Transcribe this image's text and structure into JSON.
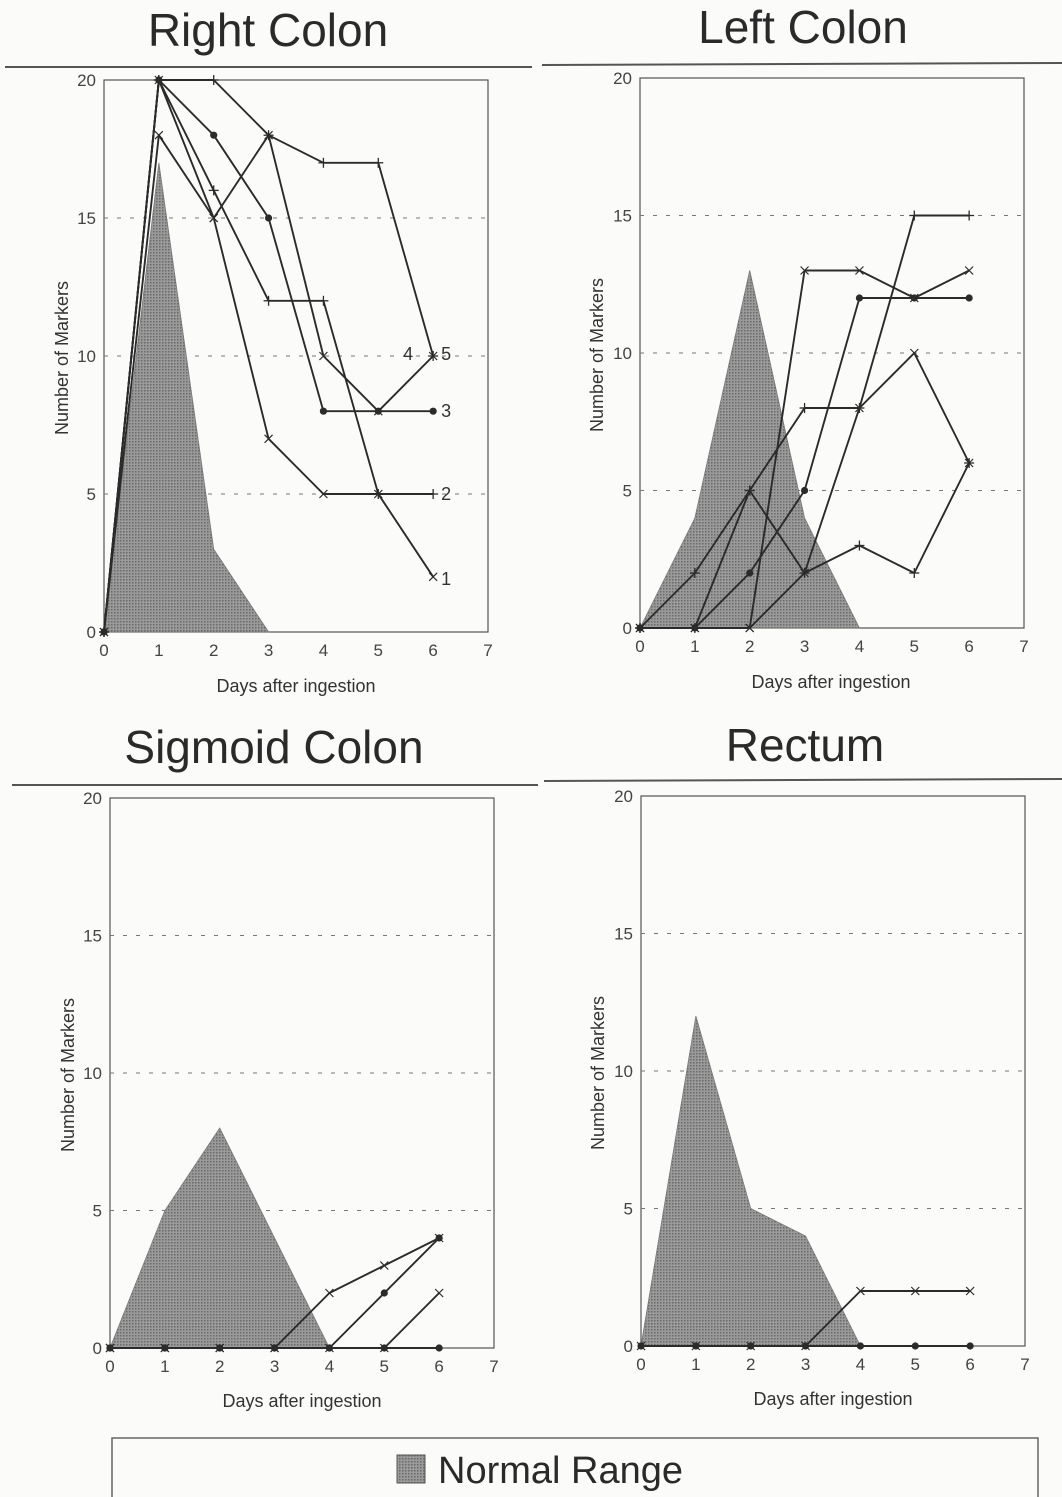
{
  "legend": {
    "label": "Normal Range"
  },
  "colors": {
    "normal_range_fill": "#8f8f8f",
    "line": "#2b2b2b",
    "grid": "#777777"
  },
  "chart_data": [
    {
      "type": "line",
      "title": "Right Colon",
      "xlabel": "Days after ingestion",
      "ylabel": "Number of Markers",
      "xlim": [
        0,
        7
      ],
      "ylim": [
        0,
        20
      ],
      "xticks": [
        0,
        1,
        2,
        3,
        4,
        5,
        6,
        7
      ],
      "yticks": [
        0,
        5,
        10,
        15,
        20
      ],
      "gridlines_y": [
        5,
        10,
        15
      ],
      "normal_range": {
        "x": [
          0,
          1,
          2,
          3
        ],
        "y": [
          0,
          17,
          3,
          0
        ]
      },
      "series": [
        {
          "name": "1",
          "marker": "x",
          "x": [
            0,
            1,
            2,
            3,
            4,
            5,
            6
          ],
          "y": [
            0,
            20,
            15,
            7,
            5,
            5,
            2
          ]
        },
        {
          "name": "2",
          "marker": "+",
          "x": [
            0,
            1,
            2,
            3,
            4,
            5,
            6
          ],
          "y": [
            0,
            20,
            16,
            12,
            12,
            5,
            5
          ]
        },
        {
          "name": "3",
          "marker": "dot",
          "x": [
            0,
            1,
            2,
            3,
            4,
            5,
            6
          ],
          "y": [
            0,
            20,
            18,
            15,
            8,
            8,
            8
          ]
        },
        {
          "name": "4",
          "marker": "x",
          "x": [
            0,
            1,
            2,
            3,
            4,
            5,
            6
          ],
          "y": [
            0,
            18,
            15,
            18,
            10,
            8,
            10
          ]
        },
        {
          "name": "5",
          "marker": "+",
          "x": [
            0,
            1,
            2,
            3,
            4,
            5,
            6
          ],
          "y": [
            0,
            20,
            20,
            18,
            17,
            17,
            10
          ]
        }
      ]
    },
    {
      "type": "line",
      "title": "Left Colon",
      "xlabel": "Days after ingestion",
      "ylabel": "Number of Markers",
      "xlim": [
        0,
        7
      ],
      "ylim": [
        0,
        20
      ],
      "xticks": [
        0,
        1,
        2,
        3,
        4,
        5,
        6,
        7
      ],
      "yticks": [
        0,
        5,
        10,
        15,
        20
      ],
      "gridlines_y": [
        5,
        10,
        15
      ],
      "normal_range": {
        "x": [
          0,
          1,
          2,
          3,
          4
        ],
        "y": [
          0,
          4,
          13,
          4,
          0
        ]
      },
      "series": [
        {
          "marker": "+",
          "x": [
            0,
            1,
            2,
            3,
            4,
            5,
            6
          ],
          "y": [
            0,
            0,
            5,
            8,
            8,
            15,
            15
          ]
        },
        {
          "marker": "dot",
          "x": [
            0,
            1,
            2,
            3,
            4,
            5,
            6
          ],
          "y": [
            0,
            0,
            2,
            5,
            12,
            12,
            12
          ]
        },
        {
          "marker": "x",
          "x": [
            0,
            1,
            2,
            3,
            4,
            5,
            6
          ],
          "y": [
            0,
            0,
            0,
            13,
            13,
            12,
            13
          ]
        },
        {
          "marker": "+",
          "x": [
            0,
            1,
            2,
            3,
            4,
            5,
            6
          ],
          "y": [
            0,
            2,
            5,
            2,
            3,
            2,
            6
          ]
        },
        {
          "marker": "x",
          "x": [
            0,
            1,
            2,
            3,
            4,
            5,
            6
          ],
          "y": [
            0,
            0,
            0,
            2,
            8,
            10,
            6
          ]
        }
      ]
    },
    {
      "type": "line",
      "title": "Sigmoid Colon",
      "xlabel": "Days after ingestion",
      "ylabel": "Number of Markers",
      "xlim": [
        0,
        7
      ],
      "ylim": [
        0,
        20
      ],
      "xticks": [
        0,
        1,
        2,
        3,
        4,
        5,
        6,
        7
      ],
      "yticks": [
        0,
        5,
        10,
        15,
        20
      ],
      "gridlines_y": [
        5,
        10,
        15
      ],
      "normal_range": {
        "x": [
          0,
          1,
          2,
          3,
          4
        ],
        "y": [
          0,
          5,
          8,
          4,
          0
        ]
      },
      "series": [
        {
          "marker": "x",
          "x": [
            0,
            1,
            2,
            3,
            4,
            5,
            6
          ],
          "y": [
            0,
            0,
            0,
            0,
            2,
            3,
            4
          ]
        },
        {
          "marker": "dot",
          "x": [
            0,
            1,
            2,
            3,
            4,
            5,
            6
          ],
          "y": [
            0,
            0,
            0,
            0,
            0,
            2,
            4
          ]
        },
        {
          "marker": "x",
          "x": [
            0,
            1,
            2,
            3,
            4,
            5,
            6
          ],
          "y": [
            0,
            0,
            0,
            0,
            0,
            0,
            2
          ]
        },
        {
          "marker": "dot",
          "x": [
            0,
            1,
            2,
            3,
            4,
            5,
            6
          ],
          "y": [
            0,
            0,
            0,
            0,
            0,
            0,
            0
          ]
        }
      ]
    },
    {
      "type": "line",
      "title": "Rectum",
      "xlabel": "Days after ingestion",
      "ylabel": "Number of Markers",
      "xlim": [
        0,
        7
      ],
      "ylim": [
        0,
        20
      ],
      "xticks": [
        0,
        1,
        2,
        3,
        4,
        5,
        6,
        7
      ],
      "yticks": [
        0,
        5,
        10,
        15,
        20
      ],
      "gridlines_y": [
        5,
        10,
        15
      ],
      "normal_range": {
        "x": [
          0,
          1,
          2,
          3,
          4
        ],
        "y": [
          0,
          12,
          5,
          4,
          0
        ]
      },
      "series": [
        {
          "marker": "x",
          "x": [
            0,
            1,
            2,
            3,
            4,
            5,
            6
          ],
          "y": [
            0,
            0,
            0,
            0,
            2,
            2,
            2
          ]
        },
        {
          "marker": "dot",
          "x": [
            0,
            1,
            2,
            3,
            4,
            5,
            6
          ],
          "y": [
            0,
            0,
            0,
            0,
            0,
            0,
            0
          ]
        }
      ]
    }
  ]
}
